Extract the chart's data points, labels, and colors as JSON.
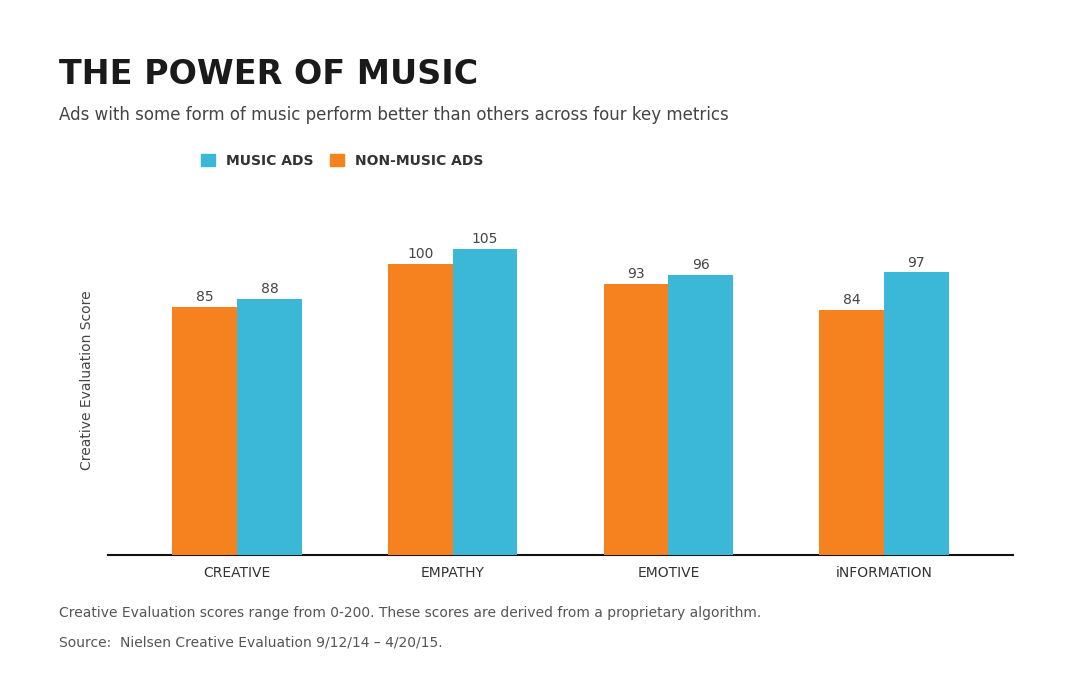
{
  "title": "THE POWER OF MUSIC",
  "subtitle": "Ads with some form of music perform better than others across four key metrics",
  "categories": [
    "CREATIVE",
    "EMPATHY",
    "EMOTIVE",
    "iNFORMATION"
  ],
  "non_music_values": [
    85,
    100,
    93,
    84
  ],
  "music_values": [
    88,
    105,
    96,
    97
  ],
  "non_music_color": "#F5821F",
  "music_color": "#3BB8D8",
  "ylabel": "Creative Evaluation Score",
  "legend_music": "MUSIC ADS",
  "legend_non_music": "NON-MUSIC ADS",
  "footnote_line1": "Creative Evaluation scores range from 0-200. These scores are derived from a proprietary algorithm.",
  "footnote_line2": "Source:  Nielsen Creative Evaluation 9/12/14 – 4/20/15.",
  "bg_color": "#FFFFFF",
  "top_bar_color": "#2B2B2B",
  "nielsen_box_color": "#29B5DA",
  "ylim_max": 120,
  "bar_width": 0.3,
  "title_fontsize": 24,
  "subtitle_fontsize": 12,
  "ylabel_fontsize": 10,
  "footnote_fontsize": 10,
  "legend_fontsize": 10,
  "xtick_fontsize": 10,
  "value_fontsize": 10
}
